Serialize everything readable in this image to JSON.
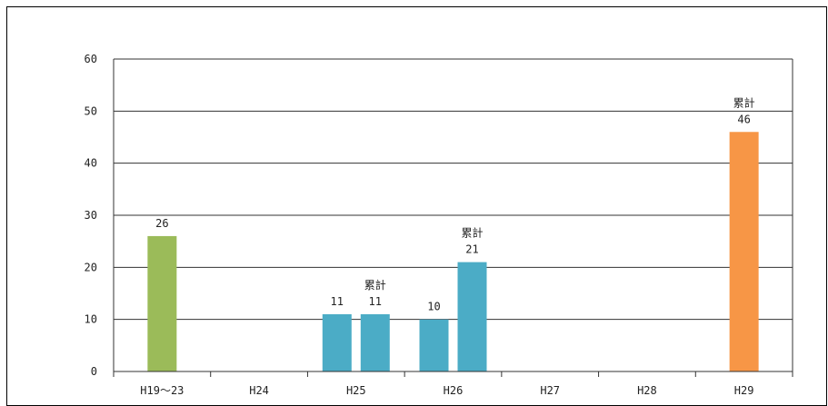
{
  "chart_data": {
    "type": "bar",
    "categories": [
      "H19～23",
      "H24",
      "H25",
      "H26",
      "H27",
      "H28",
      "H29"
    ],
    "ylim": [
      0,
      60
    ],
    "yticks": [
      0,
      10,
      20,
      30,
      40,
      50,
      60
    ],
    "grid": true,
    "bars": [
      {
        "category": "H19～23",
        "value": 26,
        "label": "26",
        "note": "",
        "color": "#9bbb59"
      },
      {
        "category": "H25",
        "value": 11,
        "label": "11",
        "note": "",
        "color": "#4bacc6"
      },
      {
        "category": "H25",
        "value": 11,
        "label": "11",
        "note": "累計",
        "color": "#4bacc6"
      },
      {
        "category": "H26",
        "value": 10,
        "label": "10",
        "note": "",
        "color": "#4bacc6"
      },
      {
        "category": "H26",
        "value": 21,
        "label": "21",
        "note": "累計",
        "color": "#4bacc6"
      },
      {
        "category": "H29",
        "value": 46,
        "label": "46",
        "note": "累計",
        "color": "#f79646"
      }
    ]
  }
}
